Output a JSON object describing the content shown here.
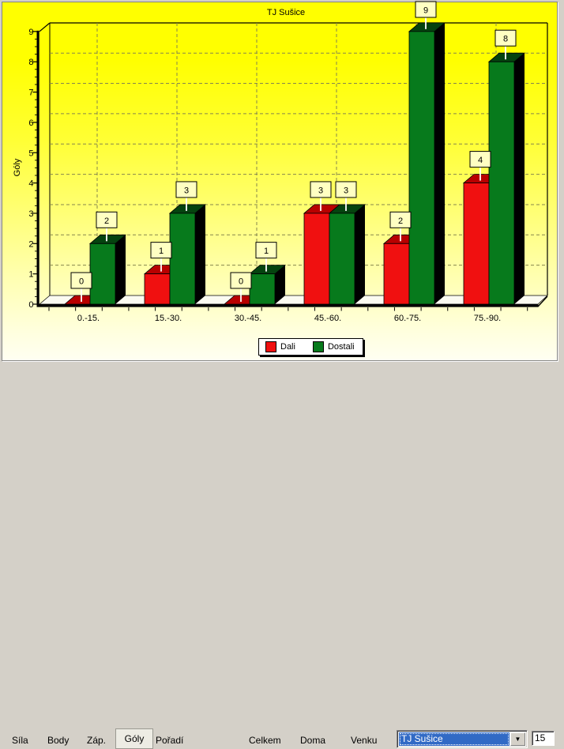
{
  "chart_data": {
    "type": "bar",
    "title": "TJ Sušice",
    "ylabel": "Góly",
    "categories": [
      "0.-15.",
      "15.-30.",
      "30.-45.",
      "45.-60.",
      "60.-75.",
      "75.-90."
    ],
    "series": [
      {
        "name": "Dali",
        "values": [
          0,
          1,
          0,
          3,
          2,
          4
        ],
        "color": "#F01010",
        "top_color": "#B80000"
      },
      {
        "name": "Dostali",
        "values": [
          2,
          3,
          1,
          3,
          9,
          8
        ],
        "color": "#077A1C",
        "top_color": "#05430F"
      }
    ],
    "ylim": [
      0,
      9
    ],
    "yticks": [
      0,
      1,
      2,
      3,
      4,
      5,
      6,
      7,
      8,
      9
    ],
    "grid": true,
    "legend_position": "bottom-center",
    "style": "3d-columns",
    "background_gradient_top": "#FFFF00",
    "background_gradient_bottom": "#FFFFF2",
    "gridline_color": "#85854E",
    "value_label_box_color": "#FFFFC2",
    "floor_color": "#FBFBF1",
    "side_face_color": "#000000"
  },
  "toolbar": {
    "tabs": [
      {
        "label": "Síla",
        "selected": false
      },
      {
        "label": "Body",
        "selected": false
      },
      {
        "label": "Záp.",
        "selected": false
      },
      {
        "label": "Góly",
        "selected": true
      },
      {
        "label": "Pořadí",
        "selected": false
      }
    ],
    "scope_buttons": [
      {
        "label": "Celkem"
      },
      {
        "label": "Doma"
      },
      {
        "label": "Venku"
      }
    ],
    "team_dropdown": {
      "value": "TJ Sušice",
      "highlight_color": "#316AC5"
    },
    "count_field": {
      "value": "15"
    }
  }
}
